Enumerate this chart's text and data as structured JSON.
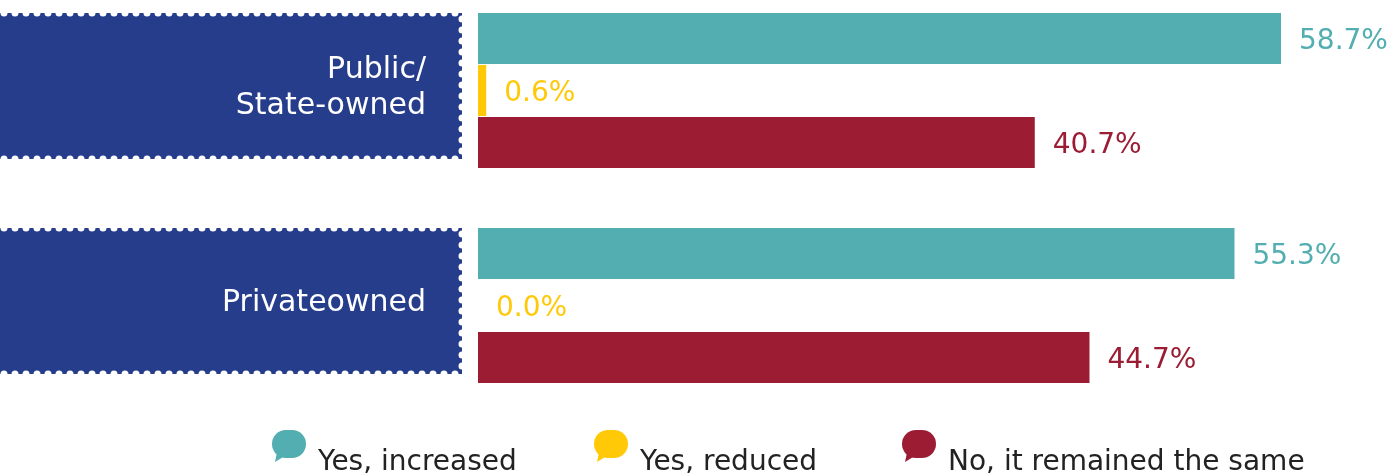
{
  "chart_data": {
    "type": "bar",
    "orientation": "horizontal",
    "categories": [
      "Public/\nState-owned",
      "Privateowned"
    ],
    "series": [
      {
        "name": "Yes, increased",
        "color": "#52aeb0",
        "values": [
          58.7,
          55.3
        ],
        "value_labels": [
          "58.7%",
          "55.3%"
        ]
      },
      {
        "name": "Yes, reduced",
        "color": "#ffc907",
        "values": [
          0.6,
          0.0
        ],
        "value_labels": [
          "0.6%",
          "0.0%"
        ]
      },
      {
        "name": "No, it remained the same",
        "color": "#9b1c33",
        "values": [
          40.7,
          44.7
        ],
        "value_labels": [
          "40.7%",
          "44.7%"
        ]
      }
    ],
    "legend": "bottom"
  }
}
